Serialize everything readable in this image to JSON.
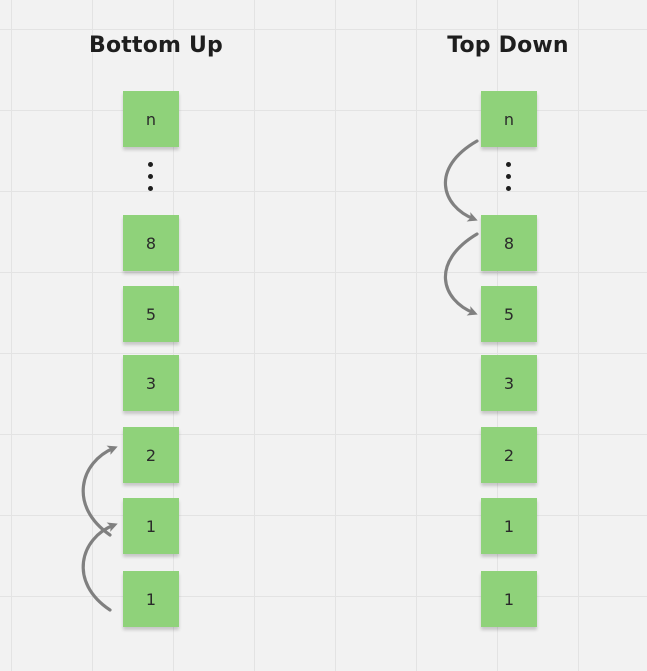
{
  "columns": {
    "bottom_up": {
      "title": "Bottom Up",
      "notes": [
        "n",
        "8",
        "5",
        "3",
        "2",
        "1",
        "1"
      ]
    },
    "top_down": {
      "title": "Top Down",
      "notes": [
        "n",
        "8",
        "5",
        "3",
        "2",
        "1",
        "1"
      ]
    }
  },
  "colors": {
    "sticky_note": "#8fd27a",
    "arrow": "#808080",
    "background": "#f2f2f2"
  }
}
